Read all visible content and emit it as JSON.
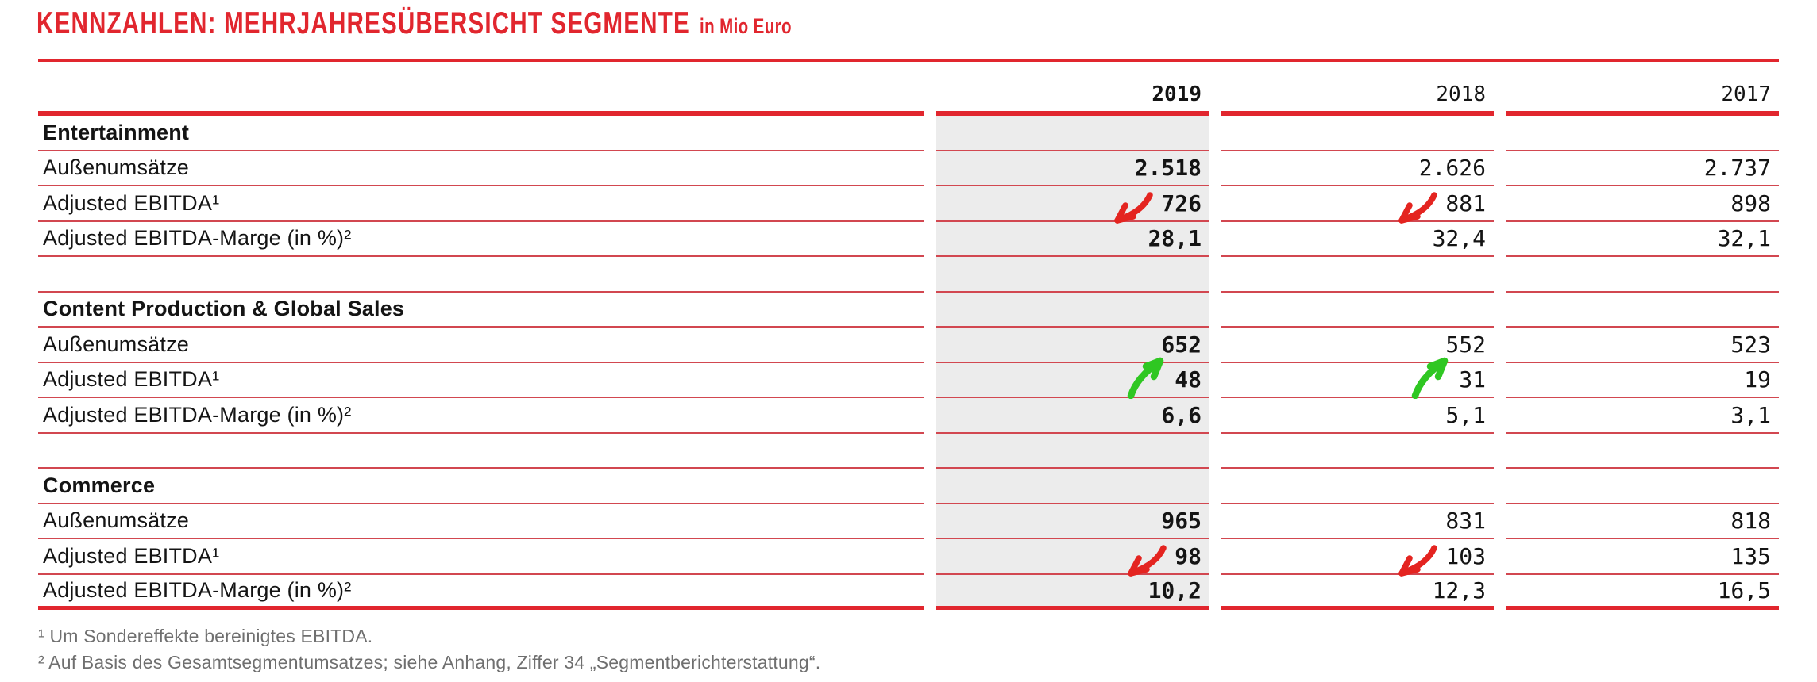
{
  "header": {
    "title": "KENNZAHLEN: MEHRJAHRESÜBERSICHT SEGMENTE",
    "subtitle": "in Mio Euro"
  },
  "colors": {
    "red_main": "#E1262E",
    "thin_line": "#D24750",
    "arrow_red": "#E42420",
    "arrow_green": "#2FC722",
    "column_highlight": "#ECECEC",
    "footnote_gray": "#6F6F6F"
  },
  "table": {
    "year_columns": [
      "2019",
      "2018",
      "2017"
    ],
    "highlighted_year": "2019",
    "sections": [
      {
        "name": "Entertainment",
        "rows": [
          {
            "label": "Außenumsätze",
            "values": [
              "2.518",
              "2.626",
              "2.737"
            ],
            "trends": [
              null,
              null,
              null
            ]
          },
          {
            "label": "Adjusted EBITDA¹",
            "values": [
              "726",
              "881",
              "898"
            ],
            "trends": [
              "down",
              "down",
              null
            ]
          },
          {
            "label": "Adjusted EBITDA-Marge (in %)²",
            "values": [
              "28,1",
              "32,4",
              "32,1"
            ],
            "trends": [
              null,
              null,
              null
            ]
          }
        ]
      },
      {
        "name": "Content Production & Global Sales",
        "rows": [
          {
            "label": "Außenumsätze",
            "values": [
              "652",
              "552",
              "523"
            ],
            "trends": [
              null,
              null,
              null
            ]
          },
          {
            "label": "Adjusted EBITDA¹",
            "values": [
              "48",
              "31",
              "19"
            ],
            "trends": [
              "up",
              "up",
              null
            ]
          },
          {
            "label": "Adjusted EBITDA-Marge (in %)²",
            "values": [
              "6,6",
              "5,1",
              "3,1"
            ],
            "trends": [
              null,
              null,
              null
            ]
          }
        ]
      },
      {
        "name": "Commerce",
        "rows": [
          {
            "label": "Außenumsätze",
            "values": [
              "965",
              "831",
              "818"
            ],
            "trends": [
              null,
              null,
              null
            ]
          },
          {
            "label": "Adjusted EBITDA¹",
            "values": [
              "98",
              "103",
              "135"
            ],
            "trends": [
              "down",
              "down",
              null
            ]
          },
          {
            "label": "Adjusted EBITDA-Marge (in %)²",
            "values": [
              "10,2",
              "12,3",
              "16,5"
            ],
            "trends": [
              null,
              null,
              null
            ]
          }
        ]
      }
    ]
  },
  "footnotes": [
    "¹ Um Sondereffekte bereinigtes EBITDA.",
    "² Auf Basis des Gesamtsegmentumsatzes; siehe Anhang, Ziffer 34 „Segmentberichterstattung“."
  ]
}
